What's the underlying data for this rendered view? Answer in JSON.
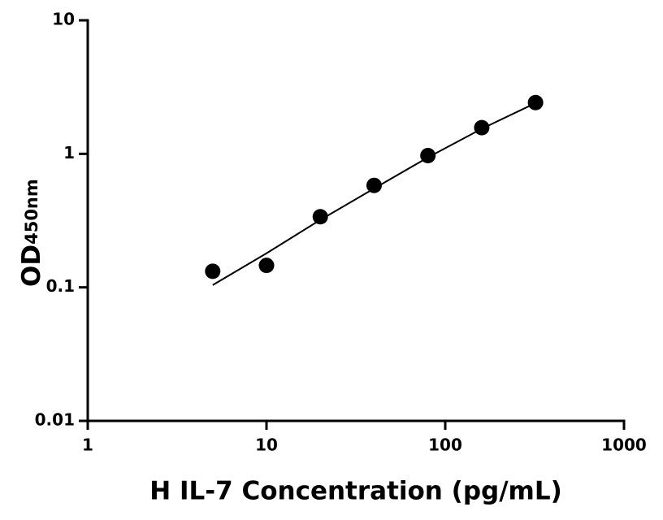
{
  "chart_data": {
    "type": "scatter",
    "xlabel": "H IL-7 Concentration (pg/mL)",
    "ylabel": "OD",
    "ylabel_sub": "450nm",
    "x": [
      5,
      10,
      20,
      40,
      80,
      160,
      320
    ],
    "values": [
      0.132,
      0.146,
      0.338,
      0.58,
      0.97,
      1.57,
      2.42
    ],
    "color": "#000000",
    "fit": {
      "x": [
        5,
        10,
        20,
        40,
        80,
        160,
        320
      ],
      "values": [
        0.104,
        0.18,
        0.32,
        0.55,
        0.94,
        1.54,
        2.4
      ]
    },
    "xscale": "log",
    "yscale": "log",
    "xlim": [
      1,
      1000
    ],
    "ylim": [
      0.01,
      10
    ],
    "xticks": [
      1,
      10,
      100,
      1000
    ],
    "yticks": [
      0.01,
      0.1,
      1,
      10
    ],
    "grid": false
  }
}
